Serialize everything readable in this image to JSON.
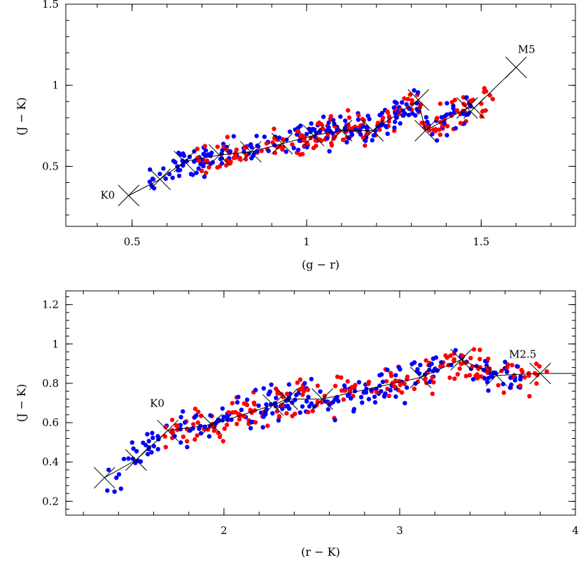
{
  "chart_data": [
    {
      "type": "scatter",
      "xlabel": "(g − r)",
      "ylabel": "(J − K)",
      "xlim": [
        0.31,
        1.77
      ],
      "ylim": [
        0.13,
        1.5
      ],
      "xticks": [
        0.5,
        1,
        1.5
      ],
      "xtick_labels": [
        "0.5",
        "1",
        "1.5"
      ],
      "yticks": [
        0.5,
        1,
        1.5
      ],
      "ytick_labels": [
        "0.5",
        "1",
        "1.5"
      ],
      "annotations": [
        {
          "text": "K0",
          "x": 0.43,
          "y": 0.3
        },
        {
          "text": "M5",
          "x": 1.63,
          "y": 1.2
        }
      ],
      "sequence": {
        "x": [
          0.49,
          0.58,
          0.65,
          0.75,
          0.84,
          0.93,
          1.02,
          1.1,
          1.19,
          1.32,
          1.34,
          1.46,
          1.48,
          1.6
        ],
        "y": [
          0.32,
          0.42,
          0.53,
          0.57,
          0.59,
          0.64,
          0.69,
          0.72,
          0.72,
          0.91,
          0.72,
          0.86,
          0.86,
          1.11
        ]
      },
      "series": [
        {
          "name": "blue",
          "color": "#0000ff",
          "n": 210,
          "x_range": [
            0.55,
            1.47
          ],
          "seed": 7
        },
        {
          "name": "red",
          "color": "#ff0000",
          "n": 200,
          "x_range": [
            0.68,
            1.54
          ],
          "seed": 13
        }
      ]
    },
    {
      "type": "scatter",
      "xlabel": "(r − K)",
      "ylabel": "(J − K)",
      "xlim": [
        1.1,
        4.0
      ],
      "ylim": [
        0.13,
        1.27
      ],
      "xticks": [
        2,
        3,
        4
      ],
      "xtick_labels": [
        "2",
        "3",
        "4"
      ],
      "yticks": [
        0.2,
        0.4,
        0.6,
        0.8,
        1,
        1.2
      ],
      "ytick_labels": [
        "0.2",
        "0.4",
        "0.6",
        "0.8",
        "1",
        "1.2"
      ],
      "annotations": [
        {
          "text": "K0",
          "x": 1.62,
          "y": 0.68
        },
        {
          "text": "M2.5",
          "x": 3.7,
          "y": 0.93
        }
      ],
      "sequence": {
        "x": [
          1.32,
          1.5,
          1.68,
          1.93,
          2.28,
          2.36,
          2.56,
          3.12,
          3.35,
          3.55,
          3.8,
          4.0
        ],
        "y": [
          0.32,
          0.41,
          0.56,
          0.59,
          0.69,
          0.72,
          0.72,
          0.83,
          0.92,
          0.84,
          0.85,
          0.85
        ]
      },
      "series": [
        {
          "name": "blue",
          "color": "#0000ff",
          "n": 230,
          "x_range": [
            1.33,
            3.72
          ],
          "seed": 21
        },
        {
          "name": "red",
          "color": "#ff0000",
          "n": 210,
          "x_range": [
            1.63,
            3.84
          ],
          "seed": 34
        }
      ]
    }
  ]
}
